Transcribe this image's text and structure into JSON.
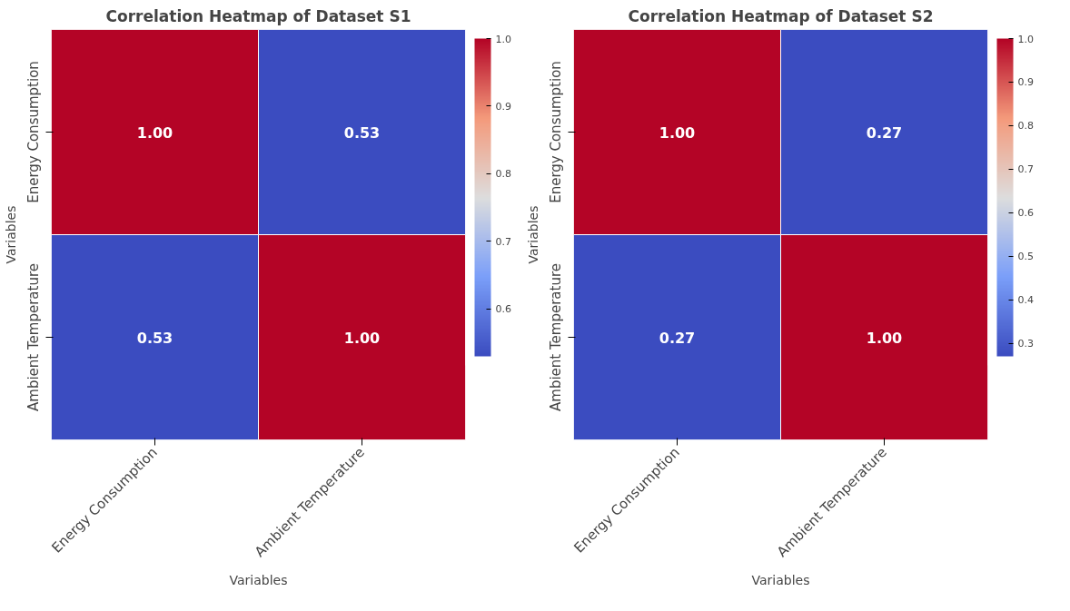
{
  "chart_data": [
    {
      "type": "heatmap",
      "title": "Correlation Heatmap of Dataset S1",
      "xlabel": "Variables",
      "ylabel": "Variables",
      "categories": [
        "Energy Consumption",
        "Ambient Temperature"
      ],
      "y_categories": [
        "Energy Consumption",
        "Ambient Temperature"
      ],
      "cells": [
        [
          1.0,
          0.53
        ],
        [
          0.53,
          1.0
        ]
      ],
      "cell_labels": [
        [
          "1.00",
          "0.53"
        ],
        [
          "0.53",
          "1.00"
        ]
      ],
      "clim": [
        0.53,
        1.0
      ],
      "cticks": [
        0.6,
        0.7,
        0.8,
        0.9,
        {
          "value": 1,
          "label": "1.0"
        }
      ]
    },
    {
      "type": "heatmap",
      "title": "Correlation Heatmap of Dataset S2",
      "xlabel": "Variables",
      "ylabel": "Variables",
      "categories": [
        "Energy Consumption",
        "Ambient Temperature"
      ],
      "y_categories": [
        "Energy Consumption",
        "Ambient Temperature"
      ],
      "cells": [
        [
          1.0,
          0.27
        ],
        [
          0.27,
          1.0
        ]
      ],
      "cell_labels": [
        [
          "1.00",
          "0.27"
        ],
        [
          "0.27",
          "1.00"
        ]
      ],
      "clim": [
        0.27,
        1.0
      ],
      "cticks": [
        0.3,
        0.4,
        0.5,
        0.6,
        0.7,
        0.8,
        0.9,
        {
          "value": 1,
          "label": "1.0"
        }
      ]
    }
  ]
}
